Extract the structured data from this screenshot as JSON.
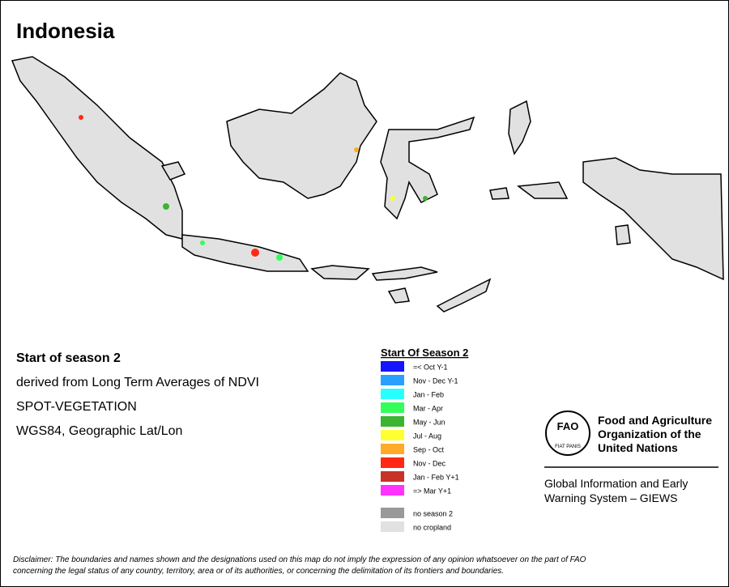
{
  "title": "Indonesia",
  "info": [
    "Start of season 2",
    "derived from Long Term Averages of NDVI",
    "SPOT-VEGETATION",
    "WGS84, Geographic Lat/Lon"
  ],
  "legend": {
    "title": "Start Of Season 2",
    "items": [
      {
        "label": "=< Oct Y-1",
        "color": "#1414ff"
      },
      {
        "label": "Nov - Dec Y-1",
        "color": "#28a0ff"
      },
      {
        "label": "Jan - Feb",
        "color": "#28ffff"
      },
      {
        "label": "Mar - Apr",
        "color": "#32ff5a"
      },
      {
        "label": "May - Jun",
        "color": "#3cb432"
      },
      {
        "label": "Jul - Aug",
        "color": "#ffff32"
      },
      {
        "label": "Sep - Oct",
        "color": "#ffaa28"
      },
      {
        "label": "Nov - Dec",
        "color": "#ff2814"
      },
      {
        "label": "Jan - Feb Y+1",
        "color": "#c83228"
      },
      {
        "label": "=> Mar Y+1",
        "color": "#ff32ff"
      }
    ],
    "extra": [
      {
        "label": "no season 2",
        "color": "#999999"
      },
      {
        "label": "no cropland",
        "color": "#e1e1e1"
      }
    ]
  },
  "fao": {
    "emblem": [
      "FAO",
      "FIAT PANIS"
    ],
    "name": [
      "Food and Agriculture",
      "Organization of the",
      "United Nations"
    ]
  },
  "giews": [
    "Global Information and Early",
    "Warning System – GIEWS"
  ],
  "disclaimer": [
    "Disclaimer: The boundaries and names shown and the designations used on this map do not imply the expression of any opinion whatsoever on the part of FAO",
    "concerning the legal status of any country, territory, area or of its authorities, or concerning the delimitation of its frontiers and boundaries."
  ]
}
